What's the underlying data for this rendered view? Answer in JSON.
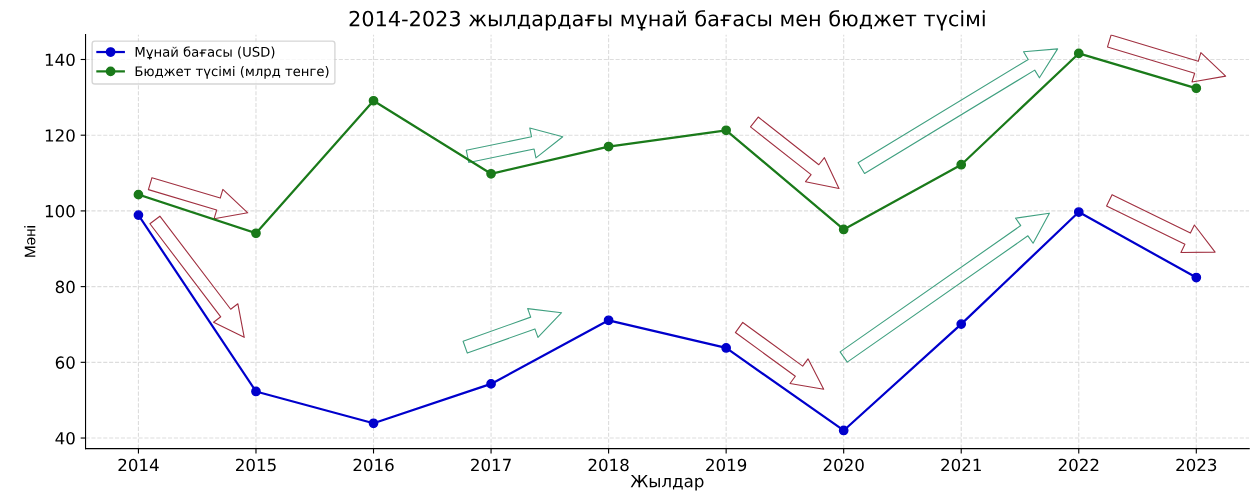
{
  "chart_data": {
    "type": "line",
    "title": "2014-2023 жылдардағы мұнай бағасы мен бюджет түсімі",
    "xlabel": "Жылдар",
    "ylabel": "Мәні",
    "x": [
      2014,
      2015,
      2016,
      2017,
      2018,
      2019,
      2020,
      2021,
      2022,
      2023
    ],
    "series": [
      {
        "name": "Мұнай бағасы (USD)",
        "color": "#0000cc",
        "values": [
          98.9,
          52.3,
          43.9,
          54.3,
          71.1,
          63.8,
          42.0,
          70.1,
          99.7,
          82.4
        ]
      },
      {
        "name": "Бюджет түсімі (млрд тенге)",
        "color": "#1a7a1a",
        "values": [
          104.3,
          94.1,
          129.1,
          109.8,
          117.0,
          121.3,
          95.1,
          112.2,
          141.6,
          132.4
        ]
      }
    ],
    "xlim": [
      2013.55,
      2023.45
    ],
    "ylim": [
      37.2,
      146.6
    ],
    "xticks": [
      2014,
      2015,
      2016,
      2017,
      2018,
      2019,
      2020,
      2021,
      2022,
      2023
    ],
    "yticks": [
      40,
      60,
      80,
      100,
      120,
      140
    ],
    "grid": true,
    "legend": "top left",
    "marker": "circle",
    "line_style": "solid"
  }
}
